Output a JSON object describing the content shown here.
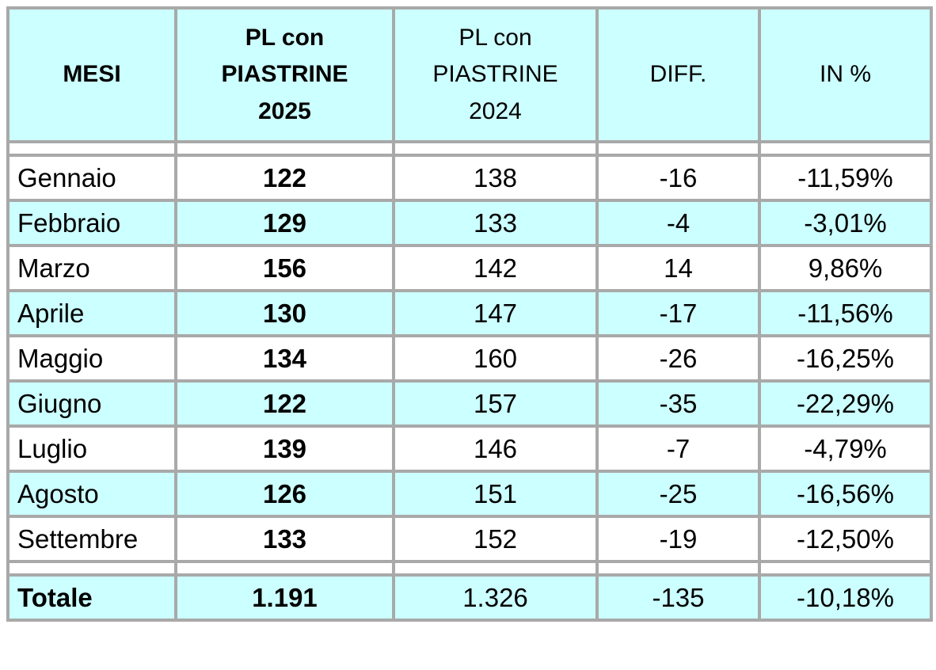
{
  "colors": {
    "header_fill": "#CCFFFF",
    "row_fill": "#FFFFFF",
    "row_alt_fill": "#CCFFFF",
    "grid": "#A9A9A9",
    "text": "#000000",
    "page_bg": "#FFFFFF"
  },
  "table": {
    "columns": {
      "month": "MESI",
      "pl_2025": "PL con\nPIASTRINE\n2025",
      "pl_2024": "PL con\nPIASTRINE\n2024",
      "diff": "DIFF.",
      "pct": "IN %"
    },
    "rows": [
      {
        "month": "Gennaio",
        "pl_2025": "122",
        "pl_2024": "138",
        "diff": "-16",
        "pct": "-11,59%"
      },
      {
        "month": "Febbraio",
        "pl_2025": "129",
        "pl_2024": "133",
        "diff": "-4",
        "pct": "-3,01%"
      },
      {
        "month": "Marzo",
        "pl_2025": "156",
        "pl_2024": "142",
        "diff": "14",
        "pct": "9,86%"
      },
      {
        "month": "Aprile",
        "pl_2025": "130",
        "pl_2024": "147",
        "diff": "-17",
        "pct": "-11,56%"
      },
      {
        "month": "Maggio",
        "pl_2025": "134",
        "pl_2024": "160",
        "diff": "-26",
        "pct": "-16,25%"
      },
      {
        "month": "Giugno",
        "pl_2025": "122",
        "pl_2024": "157",
        "diff": "-35",
        "pct": "-22,29%"
      },
      {
        "month": "Luglio",
        "pl_2025": "139",
        "pl_2024": "146",
        "diff": "-7",
        "pct": "-4,79%"
      },
      {
        "month": "Agosto",
        "pl_2025": "126",
        "pl_2024": "151",
        "diff": "-25",
        "pct": "-16,56%"
      },
      {
        "month": "Settembre",
        "pl_2025": "133",
        "pl_2024": "152",
        "diff": "-19",
        "pct": "-12,50%"
      }
    ],
    "total": {
      "month": "Totale",
      "pl_2025": "1.191",
      "pl_2024": "1.326",
      "diff": "-135",
      "pct": "-10,18%"
    }
  }
}
